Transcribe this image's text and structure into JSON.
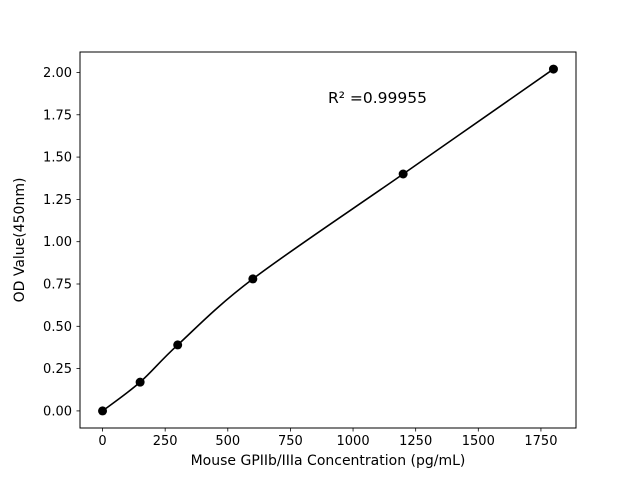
{
  "chart_data": {
    "type": "scatter",
    "title": "",
    "xlabel": "Mouse GPIIb/IIIa Concentration (pg/mL)",
    "ylabel": "OD Value(450nm)",
    "x": [
      0,
      150,
      300,
      600,
      1200,
      1800
    ],
    "y": [
      0.0,
      0.17,
      0.39,
      0.78,
      1.4,
      2.02
    ],
    "fit_line": true,
    "annotation": {
      "text": "R² =0.99955",
      "x": 900,
      "y": 1.82
    },
    "xlim": [
      -90,
      1890
    ],
    "ylim": [
      -0.101,
      2.121
    ],
    "xticks": [
      0,
      250,
      500,
      750,
      1000,
      1250,
      1500,
      1750
    ],
    "yticks": [
      0.0,
      0.25,
      0.5,
      0.75,
      1.0,
      1.25,
      1.5,
      1.75,
      2.0
    ],
    "ytick_decimals": 2,
    "grid": false,
    "legend": null,
    "marker_color": "#000000",
    "line_color": "#000000",
    "axis_color": "#000000",
    "background": "#ffffff"
  }
}
